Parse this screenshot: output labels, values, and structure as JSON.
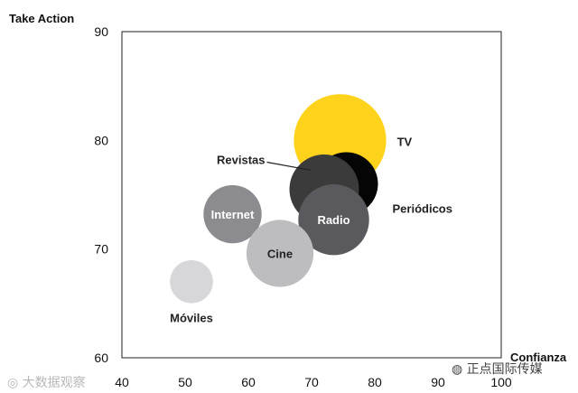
{
  "chart_data": {
    "type": "scatter",
    "ylabel": "Take Action",
    "xlabel": "Confianza",
    "xlim": [
      40,
      100
    ],
    "ylim": [
      60,
      90
    ],
    "x_ticks": [
      "40",
      "50",
      "60",
      "70",
      "80",
      "90",
      "100"
    ],
    "y_ticks": [
      "60",
      "70",
      "80",
      "90"
    ],
    "grid": false,
    "series": [
      {
        "name": "TV",
        "x": 74.5,
        "y": 80,
        "size": 7.3,
        "color": "#ffd21c",
        "label_position": "outside-right"
      },
      {
        "name": "Periódicos",
        "x": 75.5,
        "y": 76,
        "size": 5.0,
        "color": "#050505",
        "label_position": "outside-bottom-right"
      },
      {
        "name": "Revistas",
        "x": 72.0,
        "y": 75.5,
        "size": 5.5,
        "color": "#3b3b3b",
        "label_position": "outside-top-left"
      },
      {
        "name": "Radio",
        "x": 73.5,
        "y": 72.7,
        "size": 5.6,
        "color": "#5a5a5e",
        "label_position": "inside"
      },
      {
        "name": "Internet",
        "x": 57.5,
        "y": 73.2,
        "size": 4.6,
        "color": "#8c8c90",
        "label_position": "inside"
      },
      {
        "name": "Cine",
        "x": 65.0,
        "y": 69.6,
        "size": 5.3,
        "color": "#bdbdc0",
        "label_position": "inside"
      },
      {
        "name": "Móviles",
        "x": 51.0,
        "y": 67.0,
        "size": 3.4,
        "color": "#d7d7d9",
        "label_position": "outside-bottom"
      }
    ]
  },
  "watermarks": {
    "left": "大数据观察",
    "right": "正点国际传媒"
  }
}
